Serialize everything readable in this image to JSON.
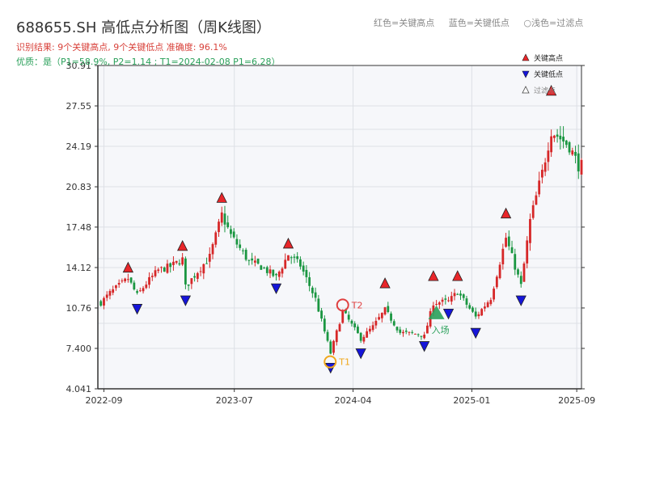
{
  "title": "688655.SH 高低点分析图（周K线图）",
  "result_text": "识别结果: 9个关键高点, 9个关键低点   准确度: 96.1%",
  "quality_text": "优质：是（P1=58.9%, P2=1.14 ; T1=2024-02-08 P1=6.28）",
  "header_legend": {
    "red": "红色=关键高点",
    "blue": "蓝色=关键低点",
    "light": "浅色=过滤点"
  },
  "colors": {
    "up": "#d62728",
    "down": "#1a9641",
    "high_marker": "#e8262a",
    "low_marker": "#1515d9",
    "t1": "#f0a81c",
    "t2": "#e04040",
    "entry": "#2aa05a",
    "plot_bg": "#f6f7fa",
    "grid": "#dde0e6"
  },
  "chart_data": {
    "type": "candlestick",
    "title": "688655.SH 高低点分析图（周K线图）",
    "x_tick_labels": [
      "2022-09",
      "2023-07",
      "2024-04",
      "2025-01",
      "2025-09"
    ],
    "y_tick_labels": [
      "4.041",
      "7.400",
      "10.76",
      "14.12",
      "17.48",
      "20.83",
      "24.19",
      "27.55",
      "30.91"
    ],
    "ylim": [
      4.041,
      30.91
    ],
    "grid": true,
    "legend": {
      "placement": "top-right",
      "entries": [
        {
          "label": "关键高点",
          "marker": "high"
        },
        {
          "label": "关键低点",
          "marker": "low"
        },
        {
          "label": "过滤点",
          "marker": "filtered"
        }
      ]
    },
    "key_highs": [
      {
        "date": "2022-10-28",
        "price": 13.6
      },
      {
        "date": "2023-03-03",
        "price": 15.4
      },
      {
        "date": "2023-06-02",
        "price": 19.4
      },
      {
        "date": "2023-11-03",
        "price": 15.6
      },
      {
        "date": "2024-06-14",
        "price": 12.3
      },
      {
        "date": "2024-10-04",
        "price": 12.9
      },
      {
        "date": "2024-11-29",
        "price": 12.9
      },
      {
        "date": "2025-03-21",
        "price": 18.1
      },
      {
        "date": "2025-07-04",
        "price": 28.3
      }
    ],
    "key_lows": [
      {
        "date": "2022-11-18",
        "price": 11.2
      },
      {
        "date": "2023-03-10",
        "price": 11.9
      },
      {
        "date": "2023-10-06",
        "price": 12.9
      },
      {
        "date": "2024-02-09",
        "price": 6.3
      },
      {
        "date": "2024-04-19",
        "price": 7.5
      },
      {
        "date": "2024-09-13",
        "price": 8.1
      },
      {
        "date": "2024-11-08",
        "price": 10.8
      },
      {
        "date": "2025-01-10",
        "price": 9.2
      },
      {
        "date": "2025-04-25",
        "price": 11.9
      }
    ],
    "annotations": [
      {
        "label": "T1",
        "date": "2024-02-08",
        "price": 6.28
      },
      {
        "label": "T2",
        "date": "2024-03-08",
        "price": 11.0
      },
      {
        "label": "入场",
        "date": "2024-10-11",
        "price": 10.3
      }
    ],
    "weekly_close_path": [
      [
        "2022-08-26",
        11.2
      ],
      [
        "2022-09-16",
        12.0
      ],
      [
        "2022-10-07",
        12.6
      ],
      [
        "2022-10-28",
        13.2
      ],
      [
        "2022-11-18",
        11.8
      ],
      [
        "2022-12-09",
        12.8
      ],
      [
        "2023-01-06",
        13.9
      ],
      [
        "2023-02-03",
        14.2
      ],
      [
        "2023-03-03",
        14.8
      ],
      [
        "2023-03-10",
        12.5
      ],
      [
        "2023-04-07",
        13.8
      ],
      [
        "2023-05-05",
        15.0
      ],
      [
        "2023-06-02",
        18.5
      ],
      [
        "2023-06-23",
        16.8
      ],
      [
        "2023-08-04",
        14.6
      ],
      [
        "2023-09-01",
        14.2
      ],
      [
        "2023-10-06",
        13.3
      ],
      [
        "2023-11-03",
        15.2
      ],
      [
        "2023-12-01",
        14.3
      ],
      [
        "2024-01-05",
        11.5
      ],
      [
        "2024-02-09",
        7.0
      ],
      [
        "2024-03-08",
        10.5
      ],
      [
        "2024-04-19",
        8.2
      ],
      [
        "2024-05-17",
        9.2
      ],
      [
        "2024-06-14",
        10.6
      ],
      [
        "2024-07-19",
        8.7
      ],
      [
        "2024-08-30",
        8.6
      ],
      [
        "2024-09-13",
        8.4
      ],
      [
        "2024-10-04",
        11.2
      ],
      [
        "2024-11-08",
        11.3
      ],
      [
        "2024-11-29",
        12.1
      ],
      [
        "2025-01-10",
        10.0
      ],
      [
        "2025-02-14",
        11.6
      ],
      [
        "2025-03-21",
        16.6
      ],
      [
        "2025-04-25",
        12.6
      ],
      [
        "2025-05-16",
        18.0
      ],
      [
        "2025-06-13",
        22.0
      ],
      [
        "2025-07-04",
        25.5
      ],
      [
        "2025-08-15",
        24.2
      ],
      [
        "2025-09-05",
        22.6
      ]
    ]
  }
}
